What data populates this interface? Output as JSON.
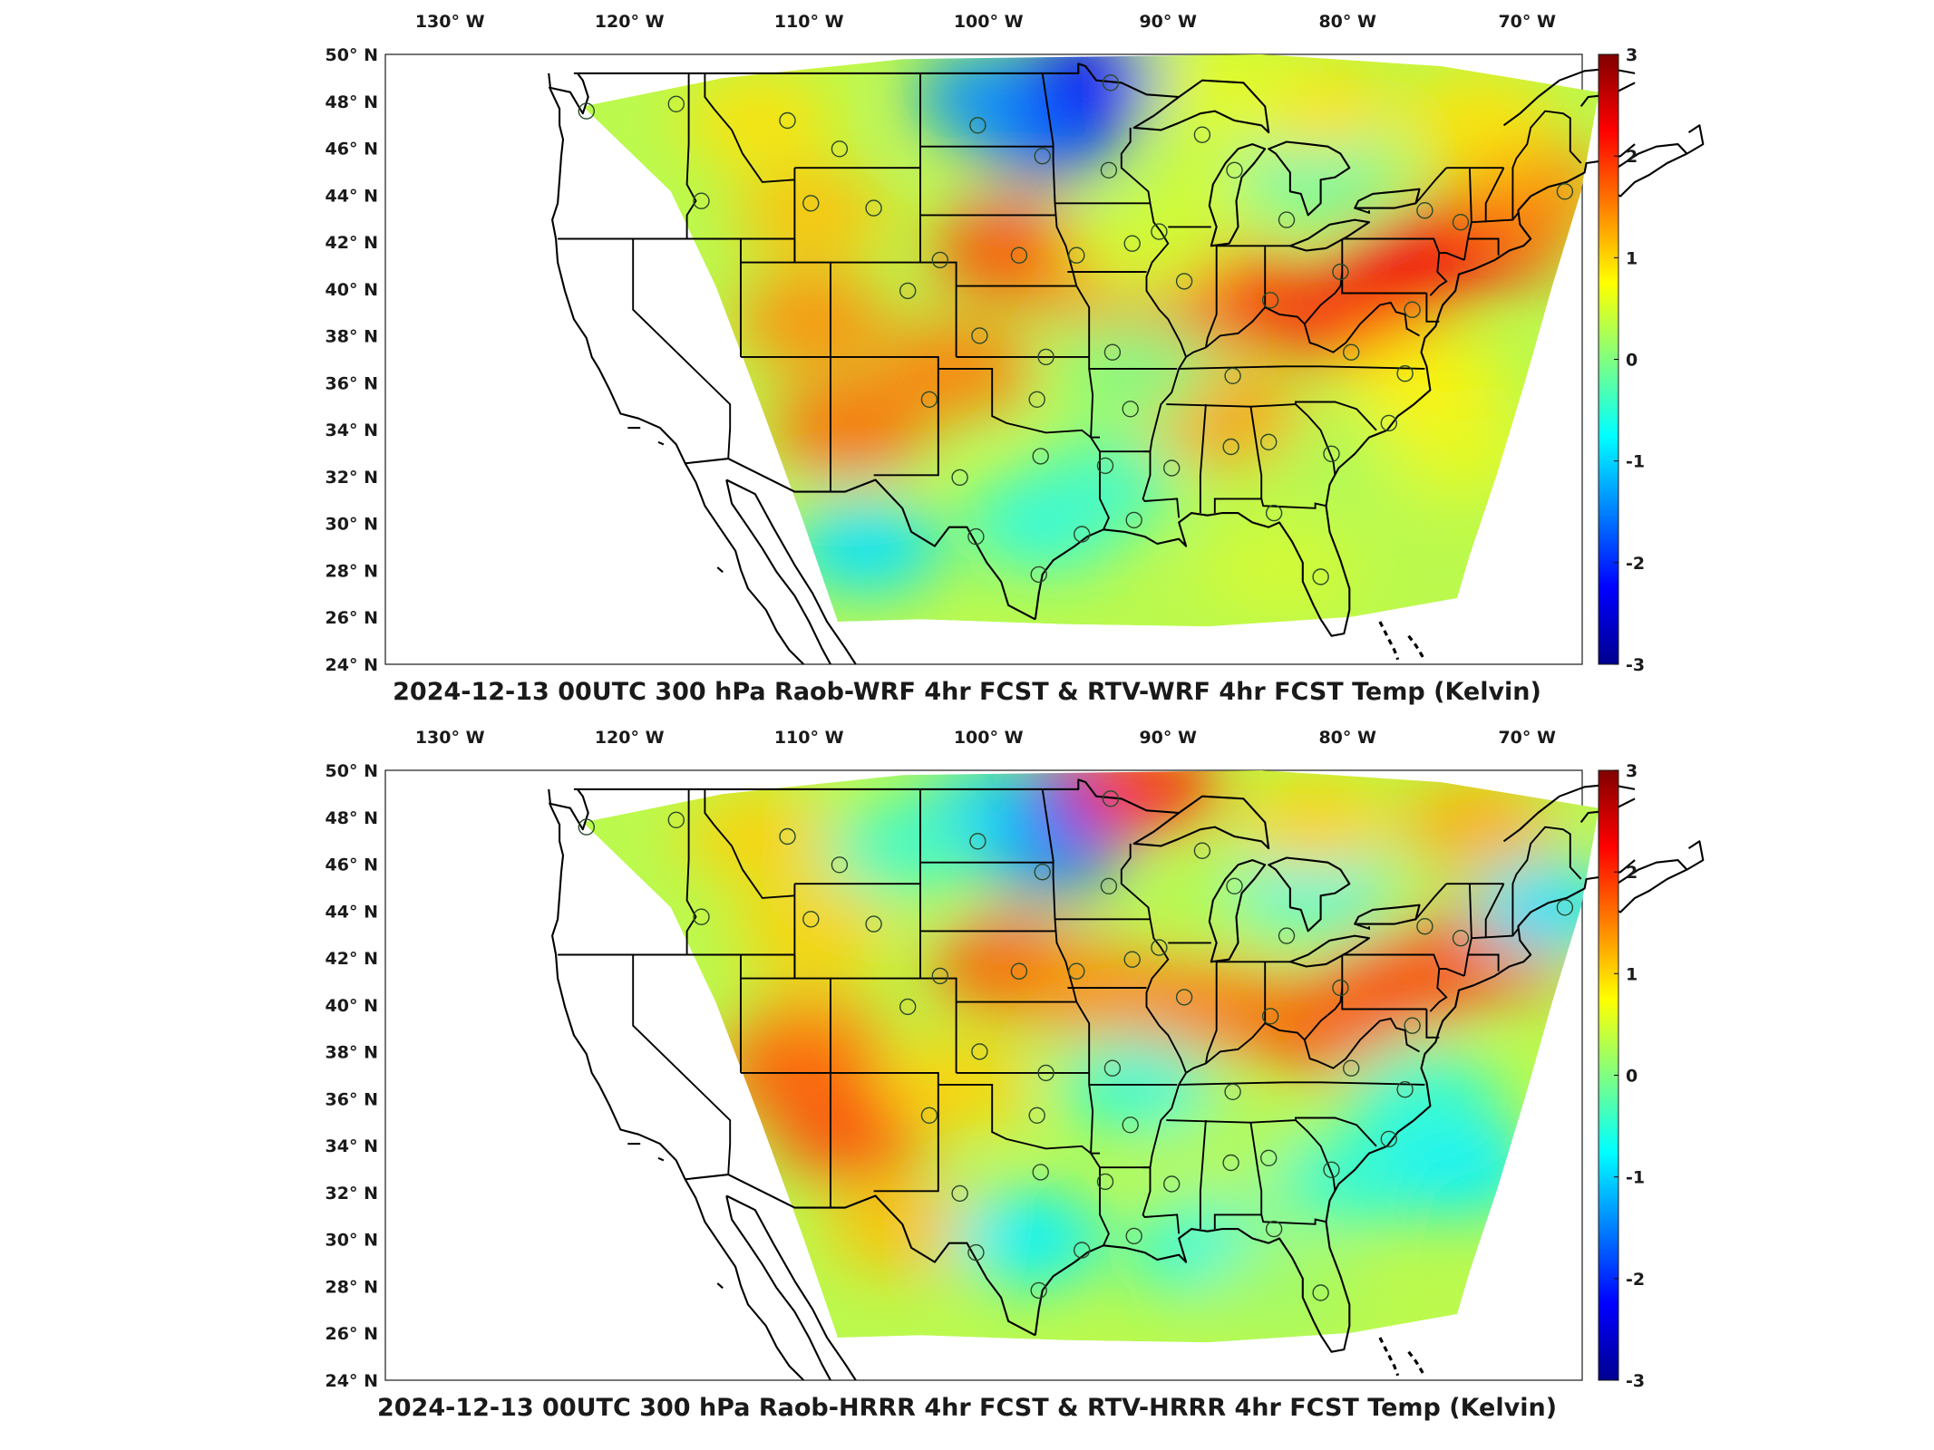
{
  "colors": {
    "frame": "#1a1a1a",
    "land": "#ffffff",
    "colormap": [
      "#00008f",
      "#0000ff",
      "#0080ff",
      "#00ffff",
      "#80ff80",
      "#ffff00",
      "#ff8000",
      "#ff0000",
      "#800000"
    ]
  },
  "axes": {
    "lon_labels": [
      "130° W",
      "120° W",
      "110° W",
      "100° W",
      "90° W",
      "80° W",
      "70° W"
    ],
    "lat_labels": [
      "50° N",
      "48° N",
      "46° N",
      "44° N",
      "42° N",
      "40° N",
      "38° N",
      "36° N",
      "34° N",
      "32° N",
      "30° N",
      "28° N",
      "26° N",
      "24° N"
    ],
    "colorbar_ticks": [
      "3",
      "2",
      "1",
      "0",
      "-1",
      "-2",
      "-3"
    ],
    "colorbar_range": [
      -3,
      3
    ]
  },
  "panels": [
    {
      "id": "wrf",
      "title": "2024-12-13 00UTC 300 hPa Raob-WRF 4hr FCST & RTV-WRF 4hr FCST Temp (Kelvin)",
      "fields": [
        {
          "lon": -97,
          "lat": 46.5,
          "value": -1.8
        },
        {
          "lon": -100,
          "lat": 48,
          "value": -1.4
        },
        {
          "lon": -94.5,
          "lat": 48.7,
          "value": -2.2
        },
        {
          "lon": -99,
          "lat": 41.5,
          "value": 1.8
        },
        {
          "lon": -94,
          "lat": 40.5,
          "value": 1.6
        },
        {
          "lon": -90,
          "lat": 39.8,
          "value": 1.7
        },
        {
          "lon": -86,
          "lat": 39.5,
          "value": 1.9
        },
        {
          "lon": -80,
          "lat": 38.6,
          "value": 2.1
        },
        {
          "lon": -76.5,
          "lat": 40.8,
          "value": 2.3
        },
        {
          "lon": -72,
          "lat": 42.2,
          "value": 2.2
        },
        {
          "lon": -70,
          "lat": 44.2,
          "value": 1.4
        },
        {
          "lon": -110,
          "lat": 38.5,
          "value": 1.4
        },
        {
          "lon": -108,
          "lat": 34,
          "value": 1.6
        },
        {
          "lon": -102,
          "lat": 36.5,
          "value": 1.5
        },
        {
          "lon": -110,
          "lat": 43,
          "value": 1.1
        },
        {
          "lon": -107,
          "lat": 29,
          "value": -0.9
        },
        {
          "lon": -97,
          "lat": 30,
          "value": -0.6
        },
        {
          "lon": -87,
          "lat": 34.5,
          "value": 1.3
        },
        {
          "lon": -80,
          "lat": 32.5,
          "value": 0.3
        },
        {
          "lon": -74,
          "lat": 33,
          "value": 0.6
        },
        {
          "lon": -86,
          "lat": 44.5,
          "value": 0.5
        },
        {
          "lon": -82,
          "lat": 45,
          "value": -0.3
        },
        {
          "lon": -92,
          "lat": 36.5,
          "value": 0.0
        },
        {
          "lon": -94,
          "lat": 31.5,
          "value": -0.4
        },
        {
          "lon": -84,
          "lat": 28,
          "value": 0.5
        },
        {
          "lon": -82,
          "lat": 47.5,
          "value": 0.9
        },
        {
          "lon": -73,
          "lat": 47,
          "value": 0.9
        },
        {
          "lon": -113,
          "lat": 47,
          "value": 0.9
        },
        {
          "lon": -87,
          "lat": 48.5,
          "value": 0.6
        },
        {
          "lon": -76,
          "lat": 36,
          "value": 0.8
        },
        {
          "lon": -91.5,
          "lat": 41.5,
          "value": 0.5
        }
      ]
    },
    {
      "id": "hrrr",
      "title": "2024-12-13 00UTC 300 hPa Raob-HRRR 4hr FCST & RTV-HRRR 4hr FCST Temp (Kelvin)",
      "fields": [
        {
          "lon": -97,
          "lat": 46.5,
          "value": -1.6
        },
        {
          "lon": -100,
          "lat": 48,
          "value": -1.0
        },
        {
          "lon": -94.5,
          "lat": 48.7,
          "value": -2.0
        },
        {
          "lon": -91.5,
          "lat": 49,
          "value": 2.0
        },
        {
          "lon": -99,
          "lat": 41.5,
          "value": 1.7
        },
        {
          "lon": -94,
          "lat": 40.5,
          "value": 1.4
        },
        {
          "lon": -88,
          "lat": 39.8,
          "value": 1.5
        },
        {
          "lon": -82,
          "lat": 39.0,
          "value": 1.7
        },
        {
          "lon": -77,
          "lat": 40.8,
          "value": 1.8
        },
        {
          "lon": -72,
          "lat": 42.2,
          "value": 1.8
        },
        {
          "lon": -69,
          "lat": 44.0,
          "value": -0.9
        },
        {
          "lon": -110,
          "lat": 38.5,
          "value": 1.3
        },
        {
          "lon": -108,
          "lat": 34.5,
          "value": 1.8
        },
        {
          "lon": -111,
          "lat": 37,
          "value": 1.7
        },
        {
          "lon": -102,
          "lat": 36.5,
          "value": 1.0
        },
        {
          "lon": -110,
          "lat": 43,
          "value": 1.0
        },
        {
          "lon": -105,
          "lat": 30.5,
          "value": 1.1
        },
        {
          "lon": -98,
          "lat": 30,
          "value": -0.8
        },
        {
          "lon": -88,
          "lat": 29.5,
          "value": -0.6
        },
        {
          "lon": -87,
          "lat": 34.0,
          "value": 0.3
        },
        {
          "lon": -80,
          "lat": 32.5,
          "value": -0.5
        },
        {
          "lon": -74,
          "lat": 33,
          "value": -0.8
        },
        {
          "lon": -86,
          "lat": 44.5,
          "value": 0.3
        },
        {
          "lon": -82,
          "lat": 45,
          "value": -0.6
        },
        {
          "lon": -92,
          "lat": 36.5,
          "value": -0.5
        },
        {
          "lon": -84,
          "lat": 28,
          "value": 0.2
        },
        {
          "lon": -82,
          "lat": 47.5,
          "value": 1.0
        },
        {
          "lon": -73,
          "lat": 47.5,
          "value": 1.2
        },
        {
          "lon": -113,
          "lat": 47,
          "value": 1.0
        },
        {
          "lon": -105,
          "lat": 46.5,
          "value": -0.4
        },
        {
          "lon": -76,
          "lat": 36,
          "value": -0.5
        }
      ]
    }
  ],
  "stations": [
    {
      "lon": -122.6,
      "lat": 47.4
    },
    {
      "lon": -117.6,
      "lat": 47.7
    },
    {
      "lon": -111.4,
      "lat": 47.0
    },
    {
      "lon": -108.5,
      "lat": 45.8
    },
    {
      "lon": -100.8,
      "lat": 46.8
    },
    {
      "lon": -97.2,
      "lat": 45.5
    },
    {
      "lon": -93.5,
      "lat": 44.9
    },
    {
      "lon": -93.4,
      "lat": 48.6
    },
    {
      "lon": -116.2,
      "lat": 43.6
    },
    {
      "lon": -110.1,
      "lat": 43.5
    },
    {
      "lon": -106.6,
      "lat": 43.3
    },
    {
      "lon": -102.9,
      "lat": 41.1
    },
    {
      "lon": -98.5,
      "lat": 41.3
    },
    {
      "lon": -95.3,
      "lat": 41.3
    },
    {
      "lon": -92.2,
      "lat": 41.8
    },
    {
      "lon": -89.3,
      "lat": 40.2
    },
    {
      "lon": -84.5,
      "lat": 39.4
    },
    {
      "lon": -80.6,
      "lat": 40.6
    },
    {
      "lon": -76.6,
      "lat": 39.0
    },
    {
      "lon": -73.9,
      "lat": 42.7
    },
    {
      "lon": -68.1,
      "lat": 44.0
    },
    {
      "lon": -75.9,
      "lat": 43.2
    },
    {
      "lon": -83.6,
      "lat": 42.8
    },
    {
      "lon": -86.5,
      "lat": 44.9
    },
    {
      "lon": -88.3,
      "lat": 46.4
    },
    {
      "lon": -104.7,
      "lat": 39.8
    },
    {
      "lon": -100.7,
      "lat": 37.9
    },
    {
      "lon": -97.0,
      "lat": 37.0
    },
    {
      "lon": -93.3,
      "lat": 37.2
    },
    {
      "lon": -86.6,
      "lat": 36.2
    },
    {
      "lon": -80.0,
      "lat": 37.2
    },
    {
      "lon": -77.0,
      "lat": 36.3
    },
    {
      "lon": -103.5,
      "lat": 35.2
    },
    {
      "lon": -97.5,
      "lat": 35.2
    },
    {
      "lon": -92.3,
      "lat": 34.8
    },
    {
      "lon": -101.8,
      "lat": 31.9
    },
    {
      "lon": -97.3,
      "lat": 32.8
    },
    {
      "lon": -93.7,
      "lat": 32.4
    },
    {
      "lon": -90.0,
      "lat": 32.3
    },
    {
      "lon": -86.7,
      "lat": 33.2
    },
    {
      "lon": -84.6,
      "lat": 33.4
    },
    {
      "lon": -81.1,
      "lat": 32.9
    },
    {
      "lon": -100.9,
      "lat": 29.4
    },
    {
      "lon": -97.4,
      "lat": 27.8
    },
    {
      "lon": -95.0,
      "lat": 29.5
    },
    {
      "lon": -92.1,
      "lat": 30.1
    },
    {
      "lon": -84.3,
      "lat": 30.4
    },
    {
      "lon": -81.7,
      "lat": 27.7
    },
    {
      "lon": -77.9,
      "lat": 34.2
    },
    {
      "lon": -90.7,
      "lat": 42.3
    }
  ]
}
